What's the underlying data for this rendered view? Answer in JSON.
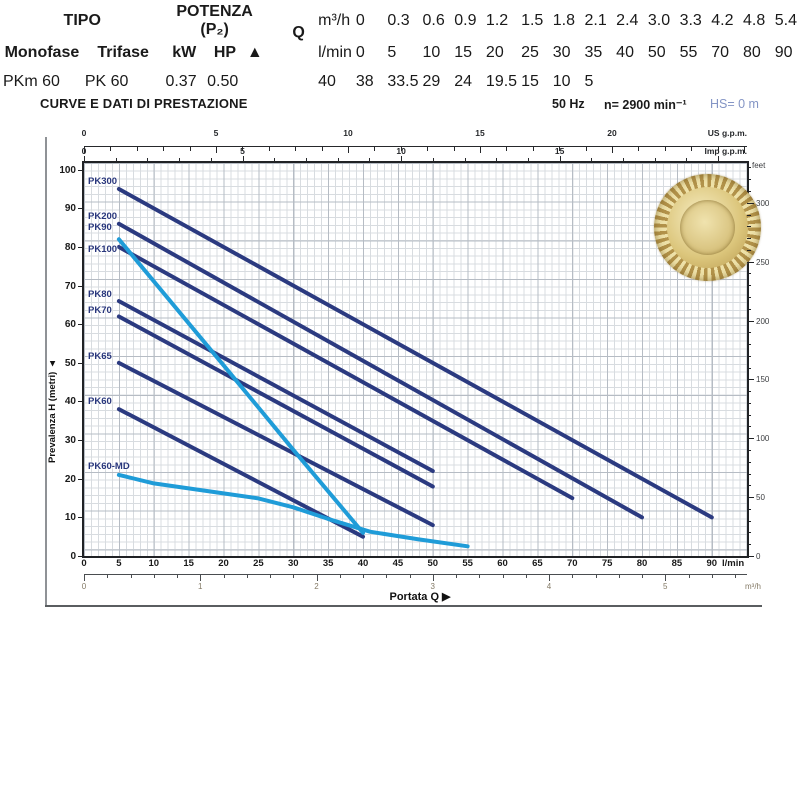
{
  "header": {
    "title": "CURVE E DATI DI PRESTAZIONE",
    "frequency": "50 Hz",
    "speed": "n= 2900 min⁻¹",
    "suction_head": "HS= 0 m"
  },
  "colors": {
    "navy": "#2b3a80",
    "lightblue": "#1f9cd8",
    "title_blue": "#1a4e9e",
    "muted_blue": "#8495c5",
    "grid_minor": "#d8dce0",
    "grid_major": "#b6bcc4",
    "table_shade": "#dce4ed",
    "impeller_gold": "#d9c278"
  },
  "chart_data": {
    "type": "line",
    "x_label": "Portata Q",
    "x_axes": {
      "lmin": {
        "unit": "l/min",
        "ticks": [
          0,
          5,
          10,
          15,
          20,
          25,
          30,
          35,
          40,
          45,
          50,
          55,
          60,
          65,
          70,
          75,
          80,
          85,
          90
        ],
        "range": [
          0,
          95
        ]
      },
      "m3h": {
        "unit": "m³/h",
        "ticks": [
          0,
          1,
          2,
          3,
          4,
          5
        ],
        "range": [
          0,
          5.7
        ]
      },
      "us_gpm": {
        "unit": "US g.p.m.",
        "ticks": [
          0,
          5,
          10,
          15,
          20
        ],
        "range": [
          0,
          25
        ]
      },
      "imp_gpm": {
        "unit": "Imp g.p.m.",
        "ticks": [
          0,
          5,
          10,
          15
        ],
        "range": [
          0,
          20
        ]
      }
    },
    "y_axes": {
      "metri": {
        "label": "Prevalenza H (metri)",
        "ticks": [
          0,
          10,
          20,
          30,
          40,
          50,
          60,
          70,
          80,
          90,
          100
        ],
        "range": [
          0,
          102
        ]
      },
      "feet": {
        "label": "feet",
        "ticks": [
          0,
          50,
          100,
          150,
          200,
          250,
          300
        ],
        "minor_step": 10,
        "max": 330
      }
    },
    "grid": true,
    "series": [
      {
        "name": "PK300",
        "color": "navy",
        "label_dy": -13,
        "points": [
          [
            5,
            95
          ],
          [
            90,
            10
          ]
        ]
      },
      {
        "name": "PK200",
        "color": "navy",
        "label_dy": -13,
        "points": [
          [
            5,
            86
          ],
          [
            80,
            10
          ]
        ]
      },
      {
        "name": "PK100",
        "color": "navy",
        "label_dy": -3,
        "points": [
          [
            5,
            80
          ],
          [
            70,
            15
          ]
        ]
      },
      {
        "name": "PK80",
        "color": "navy",
        "label_dy": -12,
        "points": [
          [
            5,
            66
          ],
          [
            50,
            22
          ]
        ]
      },
      {
        "name": "PK70",
        "color": "navy",
        "label_dy": -12,
        "points": [
          [
            5,
            62
          ],
          [
            50,
            18
          ]
        ]
      },
      {
        "name": "PK65",
        "color": "navy",
        "label_dy": -12,
        "points": [
          [
            5,
            50
          ],
          [
            50,
            8
          ]
        ]
      },
      {
        "name": "PK60",
        "color": "navy",
        "label_dy": -13,
        "points": [
          [
            5,
            38
          ],
          [
            40,
            5
          ]
        ]
      },
      {
        "name": "PK90",
        "color": "lightblue",
        "label_dy": -17,
        "points": [
          [
            5,
            82
          ],
          [
            20,
            49.4
          ],
          [
            30,
            27.5
          ],
          [
            40,
            6
          ]
        ]
      },
      {
        "name": "PK60-MD",
        "color": "lightblue",
        "label_dy": -14,
        "points": [
          [
            5,
            21
          ],
          [
            10,
            18.8
          ],
          [
            20,
            16.2
          ],
          [
            25,
            14.9
          ],
          [
            30,
            12.6
          ],
          [
            35,
            9.6
          ],
          [
            41,
            6.3
          ],
          [
            48,
            4.3
          ],
          [
            55,
            2.5
          ]
        ]
      }
    ]
  },
  "table": {
    "tipo": "TIPO",
    "potenza": "POTENZA (P₂)",
    "monofase": "Monofase",
    "trifase": "Trifase",
    "kw": "kW",
    "hp": "HP",
    "arrow": "▲",
    "q": "Q",
    "m3h": "m³/h",
    "lmin": "l/min",
    "flow_m3h": [
      "0",
      "0.3",
      "0.6",
      "0.9",
      "1.2",
      "1.5",
      "1.8",
      "2.1",
      "2.4",
      "3.0",
      "3.3",
      "4.2",
      "4.8",
      "5.4"
    ],
    "flow_lmin": [
      "0",
      "5",
      "10",
      "15",
      "20",
      "25",
      "30",
      "35",
      "40",
      "50",
      "55",
      "70",
      "80",
      "90"
    ],
    "rows": [
      {
        "monofase": "PKm 60",
        "trifase": "PK 60",
        "kw": "0.37",
        "hp": "0.50",
        "head_m": [
          "40",
          "38",
          "33.5",
          "29",
          "24",
          "19.5",
          "15",
          "10",
          "5",
          "",
          "",
          "",
          "",
          ""
        ]
      }
    ]
  }
}
